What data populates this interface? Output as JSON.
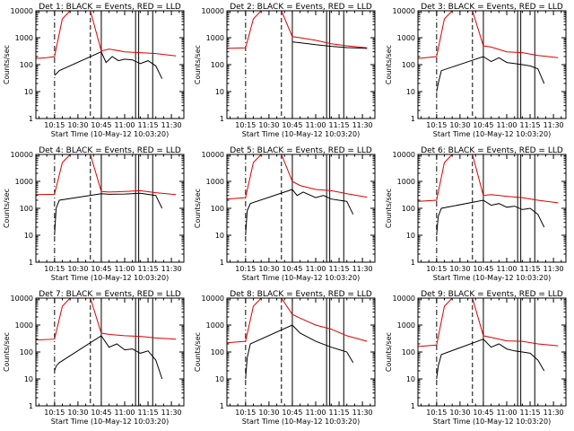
{
  "figure": {
    "colors": {
      "black": "#000000",
      "red": "#e00000",
      "background": "#ffffff"
    },
    "x_tick_labels": [
      "10:15",
      "10:30",
      "10:45",
      "11:00",
      "11:15",
      "11:30"
    ],
    "y_tick_labels": [
      "1",
      "10",
      "100",
      "1000",
      "10000"
    ],
    "ylabel": "Counts/sec",
    "xlabel": "Start Time (10-May-12 10:03:20)",
    "panel_title_prefix": "BLACK = Events, RED = LLD"
  },
  "chart_data": [
    {
      "type": "line",
      "title": "Det 1: BLACK = Events, RED = LLD",
      "xlabel": "Start Time (10-May-12 10:03:20)",
      "ylabel": "Counts/sec",
      "xlim": [
        "10:03",
        "11:38"
      ],
      "ylim": [
        1,
        10000
      ],
      "y_scale": "log",
      "grid": false,
      "x_ticks": [
        "10:15",
        "10:30",
        "10:45",
        "11:00",
        "11:15",
        "11:30"
      ],
      "vertical_markers": [
        "10:15 (dash-dot)",
        "10:38 (dashed)",
        "10:45",
        "11:07",
        "11:09",
        "11:18"
      ],
      "series": [
        {
          "name": "BLACK",
          "color": "#000000",
          "x": [
            "10:15",
            "10:16",
            "10:18",
            "10:45",
            "10:48",
            "10:52",
            "10:56",
            "11:00",
            "11:05",
            "11:10",
            "11:15",
            "11:20",
            "11:24"
          ],
          "values": [
            40,
            45,
            60,
            300,
            120,
            200,
            140,
            160,
            150,
            110,
            140,
            90,
            30
          ]
        },
        {
          "name": "RED",
          "color": "#e00000",
          "x": [
            "10:03",
            "10:10",
            "10:15",
            "10:20",
            "10:25",
            "10:30",
            "10:38",
            "10:45",
            "10:50",
            "11:00",
            "11:10",
            "11:20",
            "11:33"
          ],
          "values": [
            170,
            180,
            200,
            5000,
            10000,
            10000,
            10000,
            320,
            380,
            300,
            280,
            260,
            210
          ]
        }
      ]
    },
    {
      "type": "line",
      "title": "Det 2: BLACK = Events, RED = LLD",
      "xlabel": "Start Time (10-May-12 10:03:20)",
      "ylabel": "Counts/sec",
      "xlim": [
        "10:03",
        "11:38"
      ],
      "ylim": [
        1,
        10000
      ],
      "y_scale": "log",
      "grid": false,
      "x_ticks": [
        "10:15",
        "10:30",
        "10:45",
        "11:00",
        "11:15",
        "11:30"
      ],
      "vertical_markers": [
        "10:15 (dash-dot)",
        "10:38 (dashed)",
        "10:45",
        "11:07",
        "11:09",
        "11:18"
      ],
      "series": [
        {
          "name": "BLACK",
          "color": "#000000",
          "x": [
            "10:45",
            "10:50",
            "11:00",
            "11:10",
            "11:20",
            "11:33"
          ],
          "values": [
            700,
            650,
            550,
            480,
            430,
            400
          ]
        },
        {
          "name": "RED",
          "color": "#e00000",
          "x": [
            "10:03",
            "10:15",
            "10:20",
            "10:25",
            "10:38",
            "10:45",
            "10:50",
            "11:00",
            "11:10",
            "11:20",
            "11:33"
          ],
          "values": [
            400,
            420,
            5000,
            10000,
            10000,
            1100,
            1000,
            800,
            600,
            500,
            420
          ]
        }
      ]
    },
    {
      "type": "line",
      "title": "Det 3: BLACK = Events, RED = LLD",
      "xlabel": "Start Time (10-May-12 10:03:20)",
      "ylabel": "Counts/sec",
      "xlim": [
        "10:03",
        "11:38"
      ],
      "ylim": [
        1,
        10000
      ],
      "y_scale": "log",
      "grid": false,
      "x_ticks": [
        "10:15",
        "10:30",
        "10:45",
        "11:00",
        "11:15",
        "11:30"
      ],
      "vertical_markers": [
        "10:15 (dash-dot)",
        "10:38 (dashed)",
        "10:45",
        "11:07",
        "11:09",
        "11:18"
      ],
      "series": [
        {
          "name": "BLACK",
          "color": "#000000",
          "x": [
            "10:15",
            "10:16",
            "10:18",
            "10:45",
            "10:50",
            "10:55",
            "11:00",
            "11:05",
            "11:10",
            "11:15",
            "11:20",
            "11:24"
          ],
          "values": [
            10,
            20,
            60,
            200,
            130,
            180,
            120,
            110,
            100,
            90,
            70,
            20
          ]
        },
        {
          "name": "RED",
          "color": "#e00000",
          "x": [
            "10:03",
            "10:15",
            "10:20",
            "10:25",
            "10:38",
            "10:45",
            "10:50",
            "11:00",
            "11:10",
            "11:20",
            "11:33"
          ],
          "values": [
            170,
            200,
            5000,
            10000,
            10000,
            500,
            450,
            300,
            280,
            220,
            180
          ]
        }
      ]
    },
    {
      "type": "line",
      "title": "Det 4: BLACK = Events, RED = LLD",
      "xlabel": "Start Time (10-May-12 10:03:20)",
      "ylabel": "Counts/sec",
      "xlim": [
        "10:03",
        "11:38"
      ],
      "ylim": [
        1,
        10000
      ],
      "y_scale": "log",
      "grid": false,
      "x_ticks": [
        "10:15",
        "10:30",
        "10:45",
        "11:00",
        "11:15",
        "11:30"
      ],
      "vertical_markers": [
        "10:15 (dash-dot)",
        "10:38 (dashed)",
        "10:45",
        "11:07",
        "11:09",
        "11:18"
      ],
      "series": [
        {
          "name": "BLACK",
          "color": "#000000",
          "x": [
            "10:15",
            "10:16",
            "10:18",
            "10:45",
            "10:50",
            "11:00",
            "11:10",
            "11:20",
            "11:24"
          ],
          "values": [
            10,
            100,
            200,
            350,
            330,
            340,
            360,
            300,
            100
          ]
        },
        {
          "name": "RED",
          "color": "#e00000",
          "x": [
            "10:03",
            "10:15",
            "10:20",
            "10:25",
            "10:38",
            "10:45",
            "10:50",
            "11:00",
            "11:10",
            "11:20",
            "11:33"
          ],
          "values": [
            320,
            330,
            5000,
            10000,
            10000,
            420,
            400,
            420,
            450,
            380,
            320
          ]
        }
      ]
    },
    {
      "type": "line",
      "title": "Det 5: BLACK = Events, RED = LLD",
      "xlabel": "Start Time (10-May-12 10:03:20)",
      "ylabel": "Counts/sec",
      "xlim": [
        "10:03",
        "11:38"
      ],
      "ylim": [
        1,
        10000
      ],
      "y_scale": "log",
      "grid": false,
      "x_ticks": [
        "10:15",
        "10:30",
        "10:45",
        "11:00",
        "11:15",
        "11:30"
      ],
      "vertical_markers": [
        "10:15 (dash-dot)",
        "10:38 (dashed)",
        "10:45",
        "11:07",
        "11:09",
        "11:18"
      ],
      "series": [
        {
          "name": "BLACK",
          "color": "#000000",
          "x": [
            "10:15",
            "10:16",
            "10:18",
            "10:45",
            "10:48",
            "10:52",
            "11:00",
            "11:05",
            "11:10",
            "11:15",
            "11:20",
            "11:24"
          ],
          "values": [
            10,
            80,
            150,
            500,
            300,
            400,
            250,
            300,
            220,
            200,
            180,
            60
          ]
        },
        {
          "name": "RED",
          "color": "#e00000",
          "x": [
            "10:03",
            "10:15",
            "10:20",
            "10:25",
            "10:38",
            "10:45",
            "10:50",
            "11:00",
            "11:10",
            "11:20",
            "11:33"
          ],
          "values": [
            220,
            250,
            5000,
            10000,
            10000,
            1000,
            700,
            500,
            450,
            350,
            260
          ]
        }
      ]
    },
    {
      "type": "line",
      "title": "Det 6: BLACK = Events, RED = LLD",
      "xlabel": "Start Time (10-May-12 10:03:20)",
      "ylabel": "Counts/sec",
      "xlim": [
        "10:03",
        "11:38"
      ],
      "ylim": [
        1,
        10000
      ],
      "y_scale": "log",
      "grid": false,
      "x_ticks": [
        "10:15",
        "10:30",
        "10:45",
        "11:00",
        "11:15",
        "11:30"
      ],
      "vertical_markers": [
        "10:15 (dash-dot)",
        "10:38 (dashed)",
        "10:45",
        "11:07",
        "11:09",
        "11:18"
      ],
      "series": [
        {
          "name": "BLACK",
          "color": "#000000",
          "x": [
            "10:15",
            "10:16",
            "10:18",
            "10:45",
            "10:50",
            "10:55",
            "11:00",
            "11:05",
            "11:10",
            "11:15",
            "11:20",
            "11:24"
          ],
          "values": [
            10,
            50,
            100,
            200,
            130,
            150,
            110,
            120,
            90,
            100,
            60,
            20
          ]
        },
        {
          "name": "RED",
          "color": "#e00000",
          "x": [
            "10:03",
            "10:15",
            "10:20",
            "10:25",
            "10:38",
            "10:45",
            "10:50",
            "11:00",
            "11:10",
            "11:20",
            "11:33"
          ],
          "values": [
            180,
            200,
            5000,
            10000,
            10000,
            300,
            320,
            280,
            250,
            200,
            160
          ]
        }
      ]
    },
    {
      "type": "line",
      "title": "Det 7: BLACK = Events, RED = LLD",
      "xlabel": "Start Time (10-May-12 10:03:20)",
      "ylabel": "Counts/sec",
      "xlim": [
        "10:03",
        "11:38"
      ],
      "ylim": [
        1,
        10000
      ],
      "y_scale": "log",
      "grid": false,
      "x_ticks": [
        "10:15",
        "10:30",
        "10:45",
        "11:00",
        "11:15",
        "11:30"
      ],
      "vertical_markers": [
        "10:15 (dash-dot)",
        "10:38 (dashed)",
        "10:45",
        "11:07",
        "11:09",
        "11:18"
      ],
      "series": [
        {
          "name": "BLACK",
          "color": "#000000",
          "x": [
            "10:15",
            "10:16",
            "10:18",
            "10:45",
            "10:50",
            "10:55",
            "11:00",
            "11:05",
            "11:10",
            "11:15",
            "11:20",
            "11:24"
          ],
          "values": [
            20,
            30,
            40,
            400,
            150,
            200,
            120,
            130,
            90,
            110,
            50,
            10
          ]
        },
        {
          "name": "RED",
          "color": "#e00000",
          "x": [
            "10:03",
            "10:15",
            "10:20",
            "10:25",
            "10:38",
            "10:45",
            "10:50",
            "11:00",
            "11:10",
            "11:20",
            "11:33"
          ],
          "values": [
            280,
            300,
            5000,
            10000,
            10000,
            500,
            450,
            400,
            380,
            330,
            300
          ]
        }
      ]
    },
    {
      "type": "line",
      "title": "Det 8: BLACK = Events, RED = LLD",
      "xlabel": "Start Time (10-May-12 10:03:20)",
      "ylabel": "Counts/sec",
      "xlim": [
        "10:03",
        "11:38"
      ],
      "ylim": [
        1,
        10000
      ],
      "y_scale": "log",
      "grid": false,
      "x_ticks": [
        "10:15",
        "10:30",
        "10:45",
        "11:00",
        "11:15",
        "11:30"
      ],
      "vertical_markers": [
        "10:15 (dash-dot)",
        "10:38 (dashed)",
        "10:45",
        "11:07",
        "11:09",
        "11:18"
      ],
      "series": [
        {
          "name": "BLACK",
          "color": "#000000",
          "x": [
            "10:15",
            "10:16",
            "10:18",
            "10:45",
            "10:50",
            "11:00",
            "11:10",
            "11:20",
            "11:24"
          ],
          "values": [
            10,
            60,
            200,
            1000,
            500,
            250,
            150,
            100,
            40
          ]
        },
        {
          "name": "RED",
          "color": "#e00000",
          "x": [
            "10:03",
            "10:15",
            "10:20",
            "10:25",
            "10:38",
            "10:45",
            "10:50",
            "11:00",
            "11:10",
            "11:20",
            "11:33"
          ],
          "values": [
            220,
            250,
            5000,
            10000,
            10000,
            2500,
            1800,
            1000,
            700,
            400,
            250
          ]
        }
      ]
    },
    {
      "type": "line",
      "title": "Det 9: BLACK = Events, RED = LLD",
      "xlabel": "Start Time (10-May-12 10:03:20)",
      "ylabel": "Counts/sec",
      "xlim": [
        "10:03",
        "11:38"
      ],
      "ylim": [
        1,
        10000
      ],
      "y_scale": "log",
      "grid": false,
      "x_ticks": [
        "10:15",
        "10:30",
        "10:45",
        "11:00",
        "11:15",
        "11:30"
      ],
      "vertical_markers": [
        "10:15 (dash-dot)",
        "10:38 (dashed)",
        "10:45",
        "11:07",
        "11:09",
        "11:18"
      ],
      "series": [
        {
          "name": "BLACK",
          "color": "#000000",
          "x": [
            "10:15",
            "10:16",
            "10:18",
            "10:45",
            "10:50",
            "10:55",
            "11:00",
            "11:05",
            "11:10",
            "11:15",
            "11:20",
            "11:24"
          ],
          "values": [
            10,
            30,
            80,
            300,
            150,
            200,
            130,
            110,
            100,
            90,
            50,
            20
          ]
        },
        {
          "name": "RED",
          "color": "#e00000",
          "x": [
            "10:03",
            "10:15",
            "10:20",
            "10:25",
            "10:38",
            "10:45",
            "10:50",
            "11:00",
            "11:10",
            "11:20",
            "11:33"
          ],
          "values": [
            160,
            180,
            5000,
            10000,
            10000,
            400,
            350,
            260,
            250,
            200,
            170
          ]
        }
      ]
    }
  ]
}
